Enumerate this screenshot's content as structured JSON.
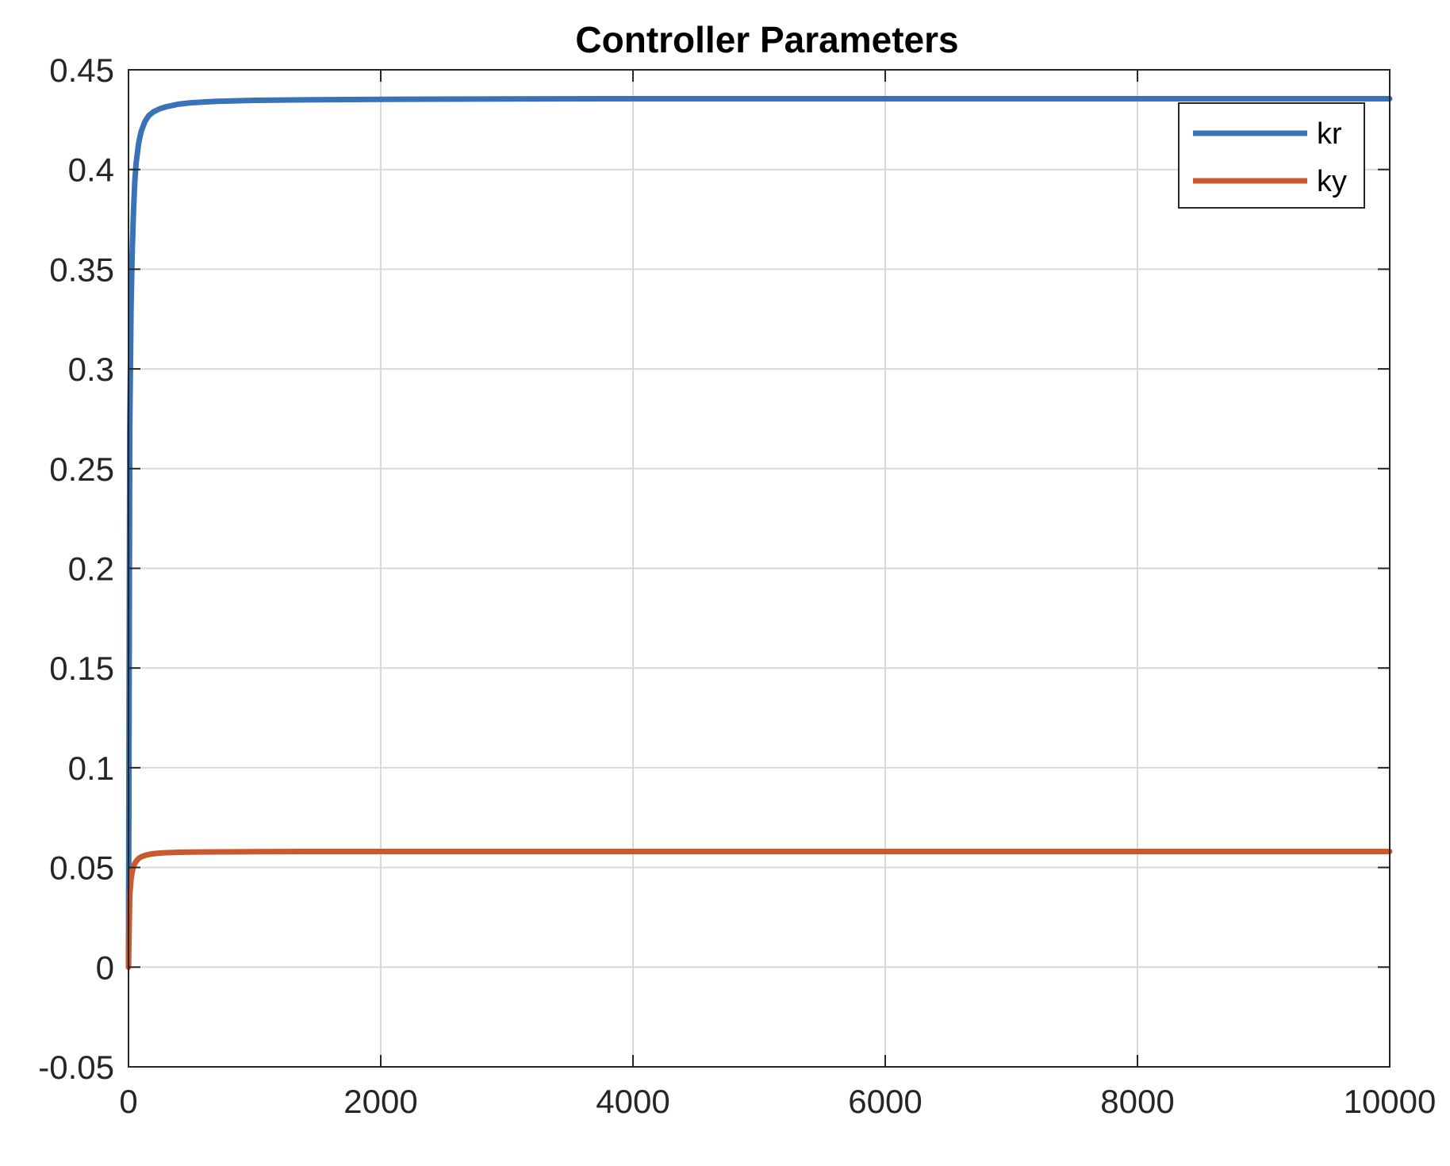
{
  "chart_data": {
    "type": "line",
    "title": "Controller Parameters",
    "xlabel": "",
    "ylabel": "",
    "xlim": [
      0,
      10000
    ],
    "ylim": [
      -0.05,
      0.45
    ],
    "xticks": [
      0,
      2000,
      4000,
      6000,
      8000,
      10000
    ],
    "xtick_labels": [
      "0",
      "2000",
      "4000",
      "6000",
      "8000",
      "10000"
    ],
    "yticks": [
      -0.05,
      0,
      0.05,
      0.1,
      0.15,
      0.2,
      0.25,
      0.3,
      0.35,
      0.4,
      0.45
    ],
    "ytick_labels": [
      "-0.05",
      "0",
      "0.05",
      "0.1",
      "0.15",
      "0.2",
      "0.25",
      "0.3",
      "0.35",
      "0.4",
      "0.45"
    ],
    "grid": true,
    "legend_position": "top-right",
    "series": [
      {
        "name": "kr",
        "color": "#3a72b8",
        "x": [
          0,
          10,
          20,
          30,
          40,
          50,
          60,
          80,
          100,
          130,
          160,
          200,
          250,
          300,
          400,
          500,
          700,
          1000,
          1500,
          2000,
          3000,
          4000,
          5000,
          6000,
          7000,
          8000,
          9000,
          10000
        ],
        "y": [
          0,
          0.27,
          0.33,
          0.36,
          0.38,
          0.394,
          0.403,
          0.413,
          0.419,
          0.424,
          0.427,
          0.429,
          0.4305,
          0.4315,
          0.4328,
          0.4335,
          0.4342,
          0.4347,
          0.435,
          0.4352,
          0.4354,
          0.4355,
          0.4355,
          0.4355,
          0.4355,
          0.4355,
          0.4355,
          0.4355
        ]
      },
      {
        "name": "ky",
        "color": "#c95a2e",
        "x": [
          0,
          10,
          20,
          30,
          40,
          50,
          60,
          80,
          100,
          130,
          160,
          200,
          250,
          300,
          400,
          500,
          700,
          1000,
          1500,
          2000,
          3000,
          4000,
          5000,
          6000,
          7000,
          8000,
          9000,
          10000
        ],
        "y": [
          0,
          0.036,
          0.044,
          0.048,
          0.0505,
          0.052,
          0.053,
          0.0545,
          0.0553,
          0.056,
          0.0565,
          0.0569,
          0.0572,
          0.0574,
          0.0576,
          0.0577,
          0.0578,
          0.0579,
          0.058,
          0.058,
          0.058,
          0.058,
          0.058,
          0.058,
          0.058,
          0.058,
          0.058,
          0.058
        ]
      }
    ]
  }
}
